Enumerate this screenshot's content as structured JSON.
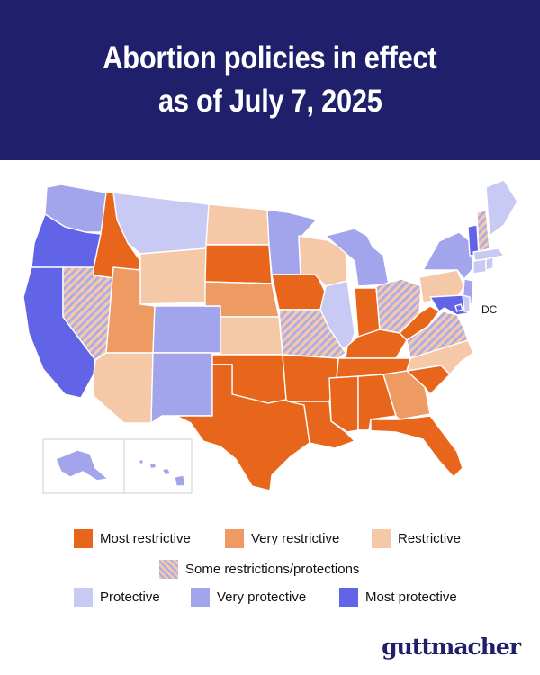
{
  "header": {
    "title_line1": "Abortion policies in effect",
    "title_line2": "as of July 7, 2025"
  },
  "colors": {
    "header_bg": "#1f1f6b",
    "most_restrictive": "#e8661b",
    "very_restrictive": "#ee9a63",
    "restrictive": "#f5c9a8",
    "some_restrictions_protections": "hatched #f5c9a8 / #a8aaee",
    "protective": "#c9caf3",
    "very_protective": "#a3a5ec",
    "most_protective": "#6264e8"
  },
  "map": {
    "dc_label": "DC"
  },
  "legend": {
    "most_restrictive": "Most restrictive",
    "very_restrictive": "Very restrictive",
    "restrictive": "Restrictive",
    "some_restrictions_protections": "Some restrictions/protections",
    "protective": "Protective",
    "very_protective": "Very protective",
    "most_protective": "Most protective"
  },
  "logo": {
    "text": "guttmacher"
  }
}
